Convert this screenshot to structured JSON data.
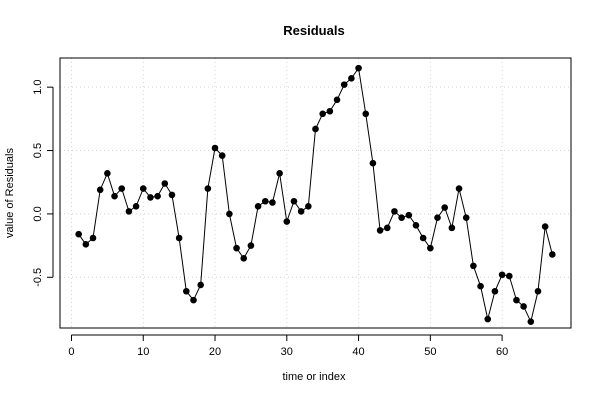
{
  "chart_data": {
    "type": "line",
    "title": "Residuals",
    "xlabel": "time or index",
    "ylabel": "value of Residuals",
    "x_ticks": [
      0,
      10,
      20,
      30,
      40,
      50,
      60
    ],
    "y_ticks": [
      -0.5,
      0.0,
      0.5,
      1.0
    ],
    "y_tick_labels": [
      "-0.5",
      "0.0",
      "0.5",
      "1.0"
    ],
    "xlim": [
      -1.6,
      69.6
    ],
    "ylim": [
      -0.9,
      1.23
    ],
    "grid": true,
    "markers": "filled-circle",
    "colors": {
      "series": "#000000",
      "grid": "#d3d3d3",
      "frame": "#000000"
    },
    "x": [
      1,
      2,
      3,
      4,
      5,
      6,
      7,
      8,
      9,
      10,
      11,
      12,
      13,
      14,
      15,
      16,
      17,
      18,
      19,
      20,
      21,
      22,
      23,
      24,
      25,
      26,
      27,
      28,
      29,
      30,
      31,
      32,
      33,
      34,
      35,
      36,
      37,
      38,
      39,
      40,
      41,
      42,
      43,
      44,
      45,
      46,
      47,
      48,
      49,
      50,
      51,
      52,
      53,
      54,
      55,
      56,
      57,
      58,
      59,
      60,
      61,
      62,
      63,
      64,
      65,
      66,
      67
    ],
    "y": [
      -0.16,
      -0.24,
      -0.19,
      0.19,
      0.32,
      0.14,
      0.2,
      0.02,
      0.06,
      0.2,
      0.13,
      0.14,
      0.24,
      0.15,
      -0.19,
      -0.61,
      -0.68,
      -0.56,
      0.2,
      0.52,
      0.46,
      0.0,
      -0.27,
      -0.35,
      -0.25,
      0.06,
      0.1,
      0.09,
      0.32,
      -0.06,
      0.1,
      0.02,
      0.06,
      0.67,
      0.79,
      0.81,
      0.9,
      1.02,
      1.07,
      1.15,
      0.79,
      0.4,
      -0.13,
      -0.11,
      0.02,
      -0.03,
      -0.01,
      -0.09,
      -0.19,
      -0.27,
      -0.03,
      0.05,
      -0.11,
      0.2,
      -0.03,
      -0.41,
      -0.57,
      -0.83,
      -0.61,
      -0.48,
      -0.49,
      -0.68,
      -0.73,
      -0.85,
      -0.61,
      -0.1,
      -0.32
    ]
  }
}
